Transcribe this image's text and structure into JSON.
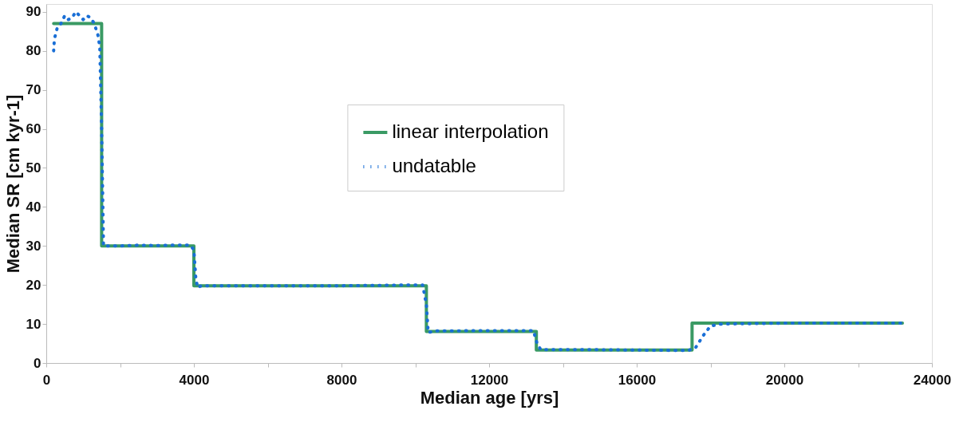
{
  "chart_data": {
    "type": "line",
    "xlabel": "Median age [yrs]",
    "ylabel": "Median SR [cm kyr-1]",
    "xlim": [
      0,
      24000
    ],
    "ylim": [
      0,
      92
    ],
    "xticks": [
      0,
      {
        "value": 2000,
        "label": null
      },
      4000,
      {
        "value": 6000,
        "label": null
      },
      8000,
      {
        "value": 10000,
        "label": null
      },
      12000,
      {
        "value": 14000,
        "label": null
      },
      16000,
      {
        "value": 18000,
        "label": null
      },
      20000,
      {
        "value": 22000,
        "label": null
      },
      24000
    ],
    "yticks": [
      0,
      10,
      20,
      30,
      40,
      50,
      60,
      70,
      80,
      90
    ],
    "grid": false,
    "legend": "top",
    "marker": "none",
    "series": [
      {
        "name": "linear interpolation",
        "color": "#3a9a64",
        "line_style": "solid",
        "x": [
          200,
          1500,
          1500,
          4000,
          4000,
          10300,
          10300,
          13280,
          13280,
          17500,
          17500,
          23200
        ],
        "values": [
          87,
          87,
          30,
          30,
          19.8,
          19.8,
          8.1,
          8.1,
          3.3,
          3.3,
          10.2,
          10.2
        ]
      },
      {
        "name": "undatable",
        "color": "#1a6fd6",
        "line_style": "dotted",
        "x": [
          200,
          220,
          300,
          400,
          500,
          600,
          700,
          800,
          900,
          1000,
          1100,
          1200,
          1300,
          1400,
          1450,
          1500,
          1550,
          2000,
          2500,
          3000,
          3500,
          3900,
          4000,
          4050,
          4100,
          4200,
          6000,
          8000,
          10000,
          10200,
          10300,
          10350,
          10500,
          12000,
          13200,
          13300,
          13400,
          15000,
          17400,
          17600,
          17800,
          18000,
          18300,
          20000,
          23200
        ],
        "values": [
          80,
          83,
          86,
          87,
          89,
          88,
          88.5,
          90,
          89,
          88,
          89,
          88.5,
          87,
          84,
          81,
          60,
          30,
          30,
          30.2,
          30.1,
          30.2,
          30.2,
          29,
          22,
          19.3,
          19.8,
          19.8,
          19.8,
          20,
          20,
          15,
          7.8,
          8.2,
          8.3,
          8.3,
          5,
          3.4,
          3.4,
          3.2,
          4,
          7,
          9.5,
          10,
          10.2,
          10.2
        ]
      }
    ]
  }
}
